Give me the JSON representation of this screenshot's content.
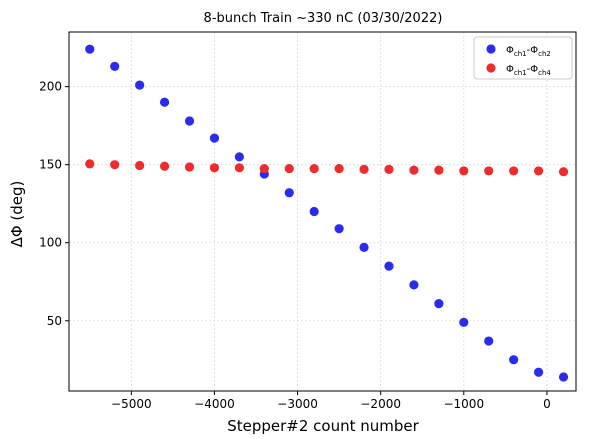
{
  "chart_data": {
    "type": "scatter",
    "title": "8-bunch Train ~330 nC (03/30/2022)",
    "xlabel": "Stepper#2 count number",
    "ylabel": "ΔΦ (deg)",
    "xlim": [
      -5750,
      350
    ],
    "ylim": [
      5,
      235
    ],
    "x_ticks": [
      -5000,
      -4000,
      -3000,
      -2000,
      -1000,
      0
    ],
    "x_tick_labels": [
      "−5000",
      "−4000",
      "−3000",
      "−2000",
      "−1000",
      "0"
    ],
    "y_ticks": [
      50,
      100,
      150,
      200
    ],
    "y_tick_labels": [
      "50",
      "100",
      "150",
      "200"
    ],
    "grid": true,
    "legend_position": "top-right",
    "series": [
      {
        "name": "Φch1-Φch2",
        "name_parts": {
          "base1": "Φ",
          "sub1": "ch1",
          "sep": "-Φ",
          "sub2": "ch2"
        },
        "color": "#2b2bef",
        "x": [
          -5500,
          -5200,
          -4900,
          -4600,
          -4300,
          -4000,
          -3700,
          -3400,
          -3100,
          -2800,
          -2500,
          -2200,
          -1900,
          -1600,
          -1300,
          -1000,
          -700,
          -400,
          -100,
          200
        ],
        "y": [
          224,
          213,
          201,
          190,
          178,
          167,
          155,
          144,
          132,
          120,
          109,
          97,
          85,
          73,
          61,
          49,
          37,
          25,
          17,
          14
        ]
      },
      {
        "name": "Φch1-Φch4",
        "name_parts": {
          "base1": "Φ",
          "sub1": "ch1",
          "sep": "-Φ",
          "sub2": "ch4"
        },
        "color": "#ef2b2b",
        "x": [
          -5500,
          -5200,
          -4900,
          -4600,
          -4300,
          -4000,
          -3700,
          -3400,
          -3100,
          -2800,
          -2500,
          -2200,
          -1900,
          -1600,
          -1300,
          -1000,
          -700,
          -400,
          -100,
          200
        ],
        "y": [
          150.5,
          150,
          149.5,
          149,
          148.5,
          148,
          148,
          147.5,
          147.5,
          147.5,
          147.5,
          147,
          147,
          146.5,
          146.5,
          146,
          146,
          146,
          146,
          145.5
        ]
      }
    ]
  }
}
